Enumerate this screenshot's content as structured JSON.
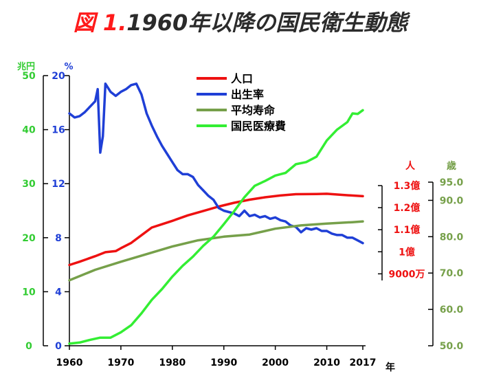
{
  "title": {
    "figure_label": "図 1.",
    "text": "1960年以降の国民衛生動態"
  },
  "chart_data": {
    "type": "line",
    "x": {
      "ticks": [
        1960,
        1970,
        1980,
        1990,
        2000,
        2010,
        2017
      ],
      "range": [
        1960,
        2017
      ],
      "label": "年"
    },
    "axes": {
      "left_money": {
        "unit": "兆円",
        "color": "#33cc33",
        "range": [
          0,
          50
        ],
        "ticks": [
          {
            "v": 0,
            "t": "0"
          },
          {
            "v": 10,
            "t": "10"
          },
          {
            "v": 20,
            "t": "20"
          },
          {
            "v": 30,
            "t": "30"
          },
          {
            "v": 40,
            "t": "40"
          },
          {
            "v": 50,
            "t": "50"
          }
        ]
      },
      "left_rate": {
        "unit": "%",
        "color": "#1f3fd6",
        "range": [
          0,
          20
        ],
        "ticks": [
          {
            "v": 0,
            "t": "0"
          },
          {
            "v": 4,
            "t": "4"
          },
          {
            "v": 8,
            "t": "8"
          },
          {
            "v": 12,
            "t": "12"
          },
          {
            "v": 16,
            "t": "16"
          },
          {
            "v": 20,
            "t": "20"
          }
        ]
      },
      "right_population": {
        "unit": "人",
        "color": "#ee1111",
        "range": [
          0.87,
          1.3
        ],
        "ticks": [
          {
            "v": 0.9,
            "t": "9000万"
          },
          {
            "v": 1.0,
            "t": "1億"
          },
          {
            "v": 1.1,
            "t": "1.1億"
          },
          {
            "v": 1.2,
            "t": "1.2億"
          },
          {
            "v": 1.3,
            "t": "1.3億"
          }
        ]
      },
      "right_age": {
        "unit": "歳",
        "color": "#76a04a",
        "range": [
          50,
          95
        ],
        "ticks": [
          {
            "v": 50,
            "t": "50.0"
          },
          {
            "v": 60,
            "t": "60.0"
          },
          {
            "v": 70,
            "t": "70.0"
          },
          {
            "v": 80,
            "t": "80.0"
          },
          {
            "v": 90,
            "t": "90.0"
          },
          {
            "v": 95,
            "t": "95.0"
          }
        ]
      }
    },
    "legend_position": "top-center",
    "series": [
      {
        "name": "人口",
        "axis": "right_population",
        "color": "#ee1111",
        "points": [
          [
            1960,
            0.94
          ],
          [
            1962,
            0.955
          ],
          [
            1965,
            0.98
          ],
          [
            1967,
            0.998
          ],
          [
            1969,
            1.003
          ],
          [
            1970,
            1.016
          ],
          [
            1972,
            1.04
          ],
          [
            1974,
            1.075
          ],
          [
            1976,
            1.11
          ],
          [
            1978,
            1.125
          ],
          [
            1980,
            1.14
          ],
          [
            1983,
            1.165
          ],
          [
            1986,
            1.185
          ],
          [
            1989,
            1.205
          ],
          [
            1992,
            1.222
          ],
          [
            1995,
            1.236
          ],
          [
            1998,
            1.247
          ],
          [
            2001,
            1.255
          ],
          [
            2004,
            1.261
          ],
          [
            2008,
            1.262
          ],
          [
            2010,
            1.263
          ],
          [
            2013,
            1.258
          ],
          [
            2017,
            1.252
          ]
        ]
      },
      {
        "name": "出生率",
        "axis": "left_rate",
        "color": "#1f3fd6",
        "points": [
          [
            1960,
            17.2
          ],
          [
            1961,
            16.9
          ],
          [
            1962,
            17.0
          ],
          [
            1963,
            17.3
          ],
          [
            1964,
            17.7
          ],
          [
            1965,
            18.1
          ],
          [
            1965.5,
            19.0
          ],
          [
            1966,
            14.3
          ],
          [
            1966.5,
            15.5
          ],
          [
            1967,
            19.4
          ],
          [
            1968,
            18.8
          ],
          [
            1969,
            18.5
          ],
          [
            1970,
            18.8
          ],
          [
            1971,
            19.0
          ],
          [
            1972,
            19.3
          ],
          [
            1973,
            19.4
          ],
          [
            1974,
            18.6
          ],
          [
            1975,
            17.2
          ],
          [
            1976,
            16.3
          ],
          [
            1977,
            15.5
          ],
          [
            1978,
            14.8
          ],
          [
            1979,
            14.2
          ],
          [
            1980,
            13.6
          ],
          [
            1981,
            13.0
          ],
          [
            1982,
            12.7
          ],
          [
            1983,
            12.7
          ],
          [
            1984,
            12.5
          ],
          [
            1985,
            11.9
          ],
          [
            1986,
            11.5
          ],
          [
            1987,
            11.1
          ],
          [
            1988,
            10.8
          ],
          [
            1989,
            10.2
          ],
          [
            1990,
            10.0
          ],
          [
            1991,
            9.9
          ],
          [
            1992,
            9.8
          ],
          [
            1993,
            9.6
          ],
          [
            1994,
            10.0
          ],
          [
            1995,
            9.6
          ],
          [
            1996,
            9.7
          ],
          [
            1997,
            9.5
          ],
          [
            1998,
            9.6
          ],
          [
            1999,
            9.4
          ],
          [
            2000,
            9.5
          ],
          [
            2001,
            9.3
          ],
          [
            2002,
            9.2
          ],
          [
            2003,
            8.9
          ],
          [
            2004,
            8.8
          ],
          [
            2005,
            8.4
          ],
          [
            2006,
            8.7
          ],
          [
            2007,
            8.6
          ],
          [
            2008,
            8.7
          ],
          [
            2009,
            8.5
          ],
          [
            2010,
            8.5
          ],
          [
            2011,
            8.3
          ],
          [
            2012,
            8.2
          ],
          [
            2013,
            8.2
          ],
          [
            2014,
            8.0
          ],
          [
            2015,
            8.0
          ],
          [
            2016,
            7.8
          ],
          [
            2017,
            7.6
          ]
        ]
      },
      {
        "name": "平均寿命",
        "axis": "right_age",
        "color": "#76a04a",
        "points": [
          [
            1960,
            68.0
          ],
          [
            1965,
            70.9
          ],
          [
            1970,
            73.1
          ],
          [
            1975,
            75.2
          ],
          [
            1980,
            77.3
          ],
          [
            1985,
            79.0
          ],
          [
            1990,
            80.0
          ],
          [
            1995,
            80.6
          ],
          [
            2000,
            82.2
          ],
          [
            2005,
            83.1
          ],
          [
            2010,
            83.6
          ],
          [
            2015,
            84.0
          ],
          [
            2017,
            84.2
          ]
        ]
      },
      {
        "name": "国民医療費",
        "axis": "left_money",
        "color": "#33ee33",
        "points": [
          [
            1960,
            0.4
          ],
          [
            1962,
            0.6
          ],
          [
            1964,
            1.1
          ],
          [
            1966,
            1.5
          ],
          [
            1968,
            1.5
          ],
          [
            1970,
            2.5
          ],
          [
            1972,
            3.8
          ],
          [
            1974,
            6.0
          ],
          [
            1976,
            8.5
          ],
          [
            1978,
            10.5
          ],
          [
            1980,
            12.8
          ],
          [
            1982,
            14.8
          ],
          [
            1984,
            16.5
          ],
          [
            1986,
            18.5
          ],
          [
            1988,
            20.2
          ],
          [
            1990,
            22.5
          ],
          [
            1992,
            24.9
          ],
          [
            1994,
            27.5
          ],
          [
            1996,
            29.6
          ],
          [
            1998,
            30.5
          ],
          [
            2000,
            31.5
          ],
          [
            2002,
            32.0
          ],
          [
            2004,
            33.6
          ],
          [
            2006,
            34.0
          ],
          [
            2008,
            35.0
          ],
          [
            2010,
            38.0
          ],
          [
            2012,
            40.0
          ],
          [
            2014,
            41.4
          ],
          [
            2015,
            43.0
          ],
          [
            2016,
            42.9
          ],
          [
            2017,
            43.6
          ]
        ]
      }
    ]
  }
}
